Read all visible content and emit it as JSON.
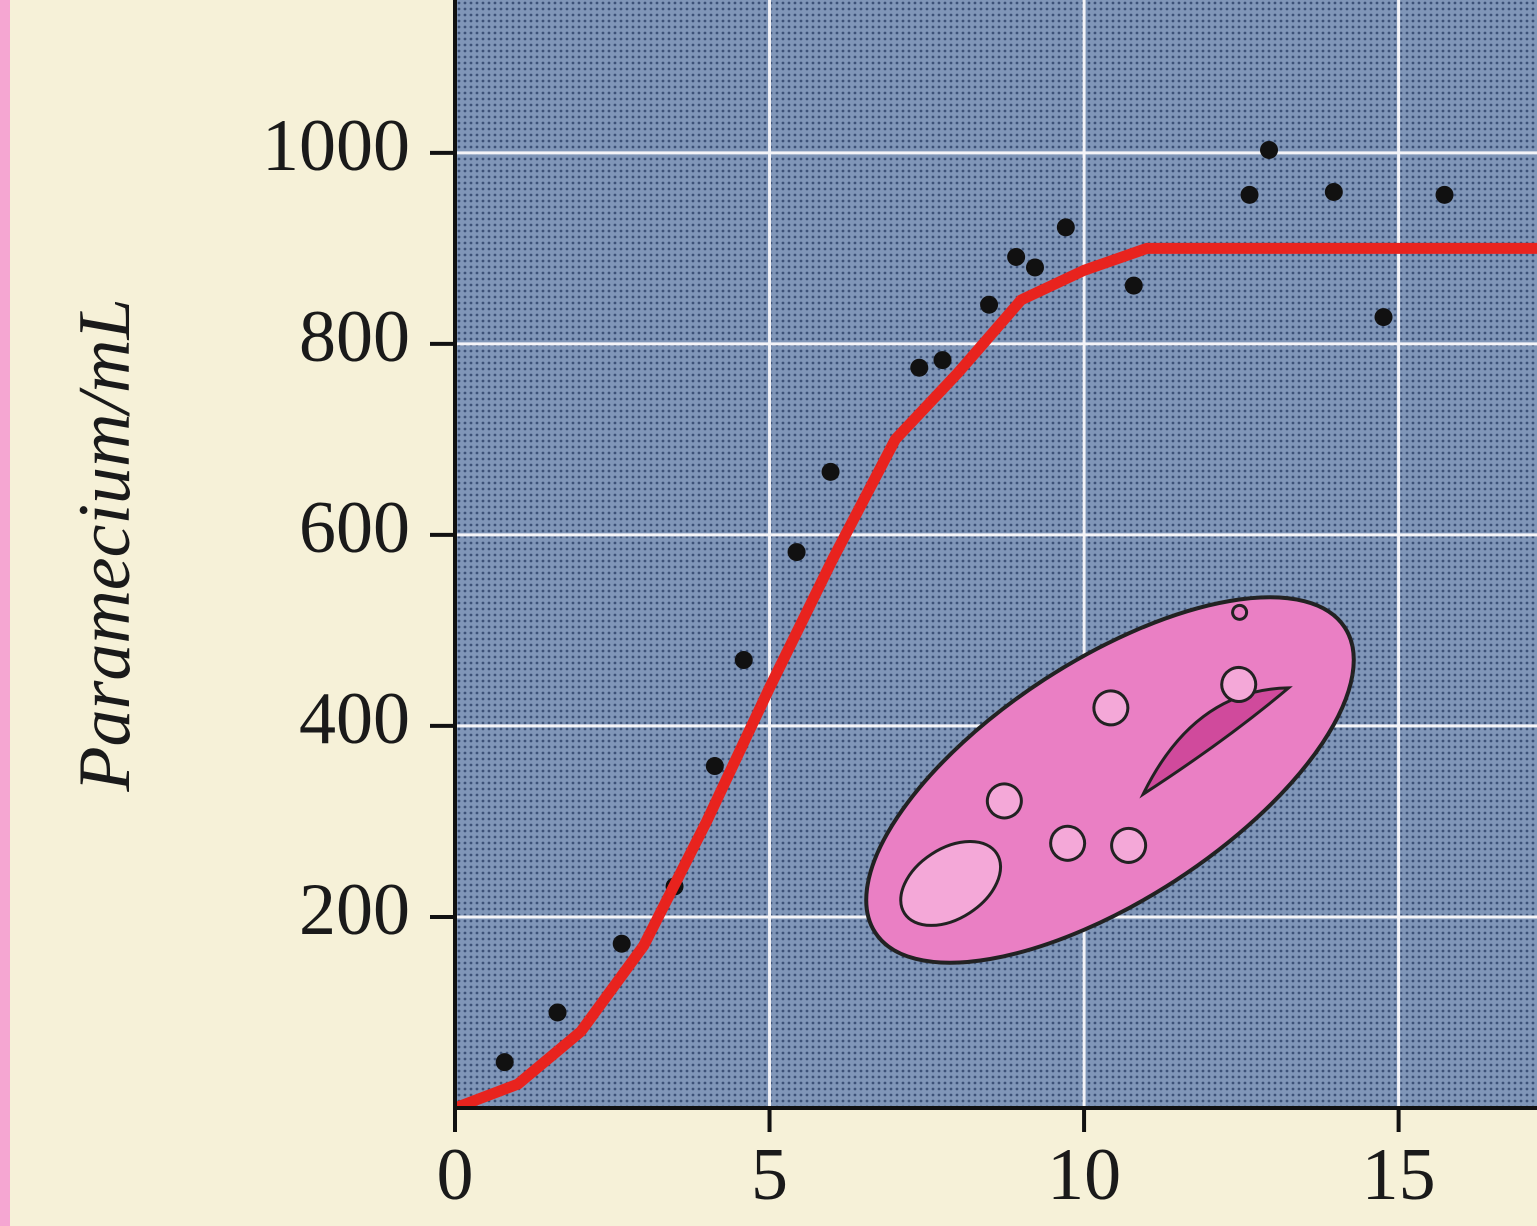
{
  "chart_data": {
    "type": "scatter",
    "y_label": "Paramecium/mL",
    "xlim": [
      0,
      17.2
    ],
    "ylim": [
      0,
      1160
    ],
    "xticks": [
      0,
      5,
      10,
      15
    ],
    "yticks": [
      200,
      400,
      600,
      800,
      1000
    ],
    "grid": true,
    "series": [
      {
        "type": "scatter",
        "color": "#111111",
        "x": [
          0.79,
          1.63,
          2.65,
          3.49,
          4.13,
          4.59,
          5.43,
          5.97,
          7.38,
          7.75,
          8.49,
          8.92,
          9.22,
          9.71,
          10.79,
          12.63,
          12.94,
          13.97,
          14.76,
          15.73
        ],
        "values": [
          48,
          100,
          172,
          232,
          358,
          469,
          582,
          666,
          775,
          783,
          841,
          891,
          880,
          922,
          861,
          956,
          1003,
          959,
          828,
          956
        ]
      },
      {
        "type": "line",
        "color": "#e8231e",
        "x": [
          0,
          1,
          2,
          3,
          4,
          5,
          6,
          7,
          8,
          9,
          10,
          11,
          12,
          13,
          14,
          15,
          16,
          17.2
        ],
        "values": [
          0,
          25,
          80,
          170,
          300,
          440,
          574,
          700,
          770,
          846,
          877,
          900,
          900,
          900,
          900,
          900,
          900,
          900
        ]
      }
    ]
  }
}
